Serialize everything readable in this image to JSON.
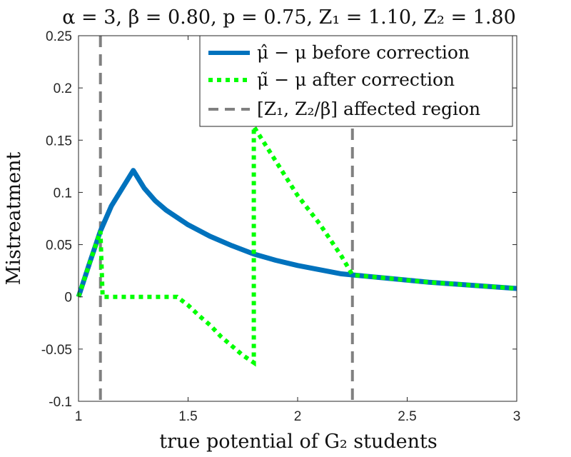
{
  "chart_data": {
    "type": "line",
    "title": "α = 3, β = 0.80, p = 0.75, Z₁ = 1.10, Z₂ = 1.80",
    "xlabel": "true potential of G₂ students",
    "ylabel": "Mistreatment",
    "xlim": [
      1,
      3
    ],
    "ylim": [
      -0.1,
      0.25
    ],
    "x_ticks": [
      "1",
      "1.5",
      "2",
      "2.5",
      "3"
    ],
    "y_ticks": [
      "-0.1",
      "-0.05",
      "0",
      "0.05",
      "0.1",
      "0.15",
      "0.2",
      "0.25"
    ],
    "legend_position": "top-right",
    "series": [
      {
        "name": "μ̂ − μ before correction",
        "style": "solid",
        "color": "#0072BD",
        "points": [
          [
            1.0,
            0.0
          ],
          [
            1.05,
            0.032
          ],
          [
            1.1,
            0.063
          ],
          [
            1.15,
            0.087
          ],
          [
            1.2,
            0.104
          ],
          [
            1.25,
            0.121
          ],
          [
            1.3,
            0.104
          ],
          [
            1.35,
            0.092
          ],
          [
            1.4,
            0.083
          ],
          [
            1.45,
            0.076
          ],
          [
            1.5,
            0.069
          ],
          [
            1.6,
            0.058
          ],
          [
            1.7,
            0.049
          ],
          [
            1.8,
            0.041
          ],
          [
            1.9,
            0.035
          ],
          [
            2.0,
            0.03
          ],
          [
            2.1,
            0.026
          ],
          [
            2.2,
            0.022
          ],
          [
            2.25,
            0.021
          ],
          [
            2.4,
            0.018
          ],
          [
            2.6,
            0.014
          ],
          [
            2.8,
            0.011
          ],
          [
            3.0,
            0.008
          ]
        ]
      },
      {
        "name": "μ̃ − μ after correction",
        "style": "dotted",
        "color": "#00FF00",
        "points": [
          [
            1.0,
            0.0
          ],
          [
            1.05,
            0.032
          ],
          [
            1.1,
            0.063
          ],
          [
            1.11,
            0.0
          ],
          [
            1.2,
            0.0
          ],
          [
            1.3,
            0.0
          ],
          [
            1.35,
            0.0
          ],
          [
            1.45,
            0.0
          ],
          [
            1.5,
            -0.008
          ],
          [
            1.55,
            -0.018
          ],
          [
            1.6,
            -0.027
          ],
          [
            1.65,
            -0.038
          ],
          [
            1.7,
            -0.047
          ],
          [
            1.75,
            -0.056
          ],
          [
            1.8,
            -0.063
          ],
          [
            1.8,
            0.163
          ],
          [
            1.9,
            0.13
          ],
          [
            2.0,
            0.097
          ],
          [
            2.1,
            0.07
          ],
          [
            2.2,
            0.039
          ],
          [
            2.25,
            0.021
          ],
          [
            2.4,
            0.018
          ],
          [
            2.6,
            0.014
          ],
          [
            2.8,
            0.011
          ],
          [
            3.0,
            0.008
          ]
        ]
      },
      {
        "name": "[Z₁, Z₂/β] affected region",
        "style": "dashed",
        "color": "#808080",
        "vlines": [
          1.1,
          2.25
        ]
      }
    ]
  }
}
